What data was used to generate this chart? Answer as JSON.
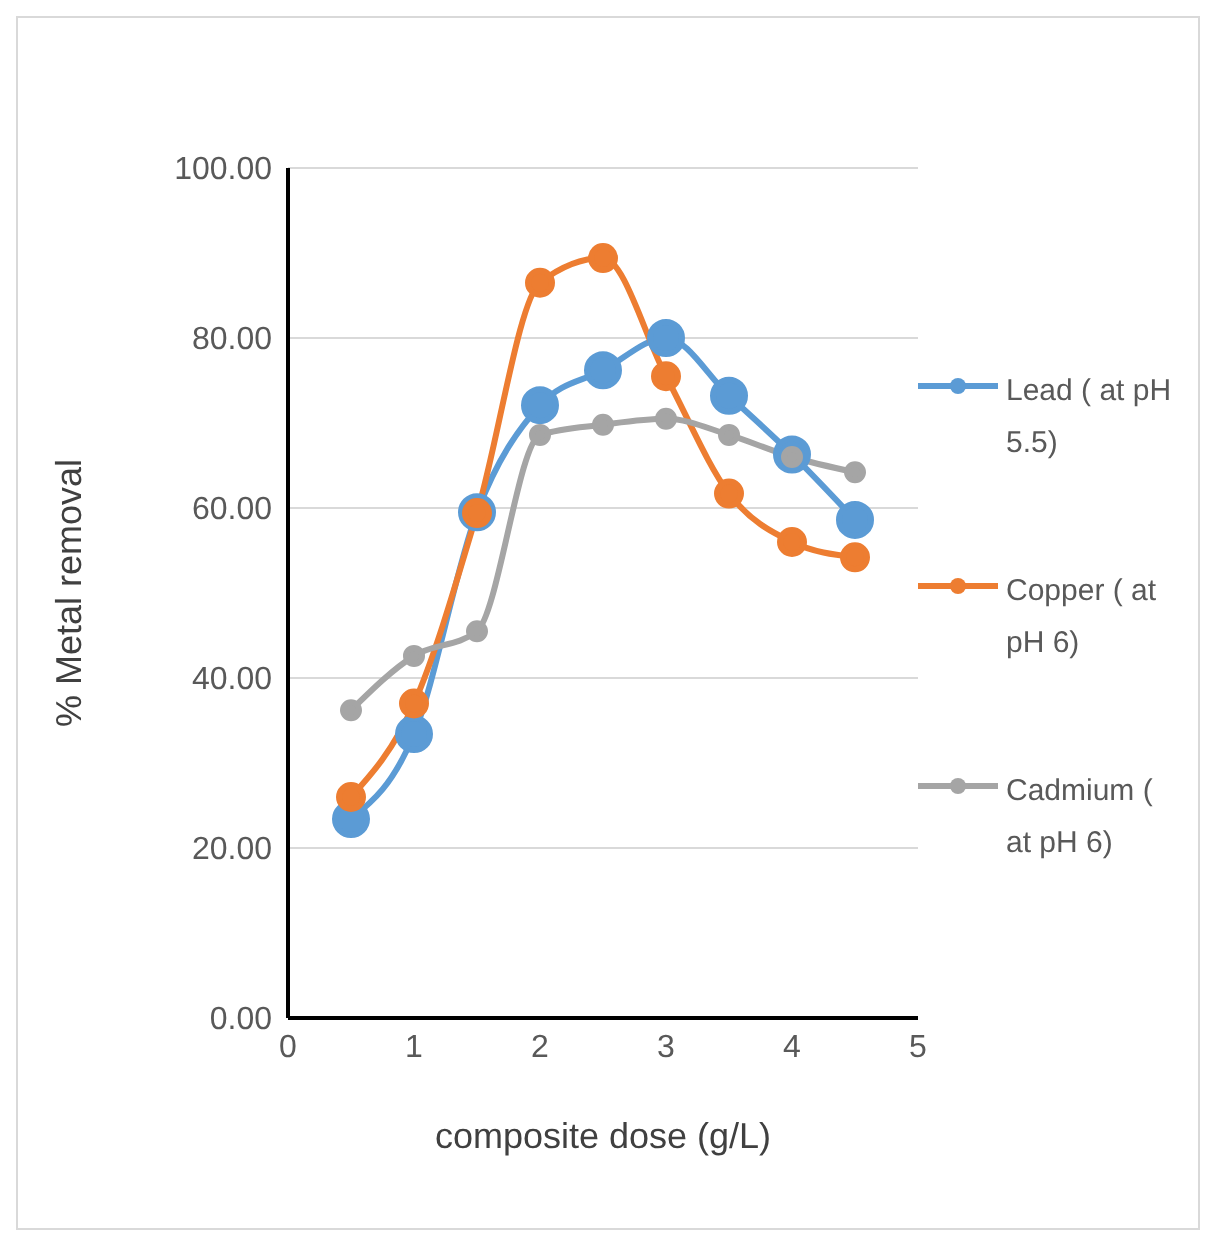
{
  "chart_data": {
    "type": "line",
    "xlabel": "composite dose (g/L)",
    "ylabel": "% Metal removal",
    "x": [
      0.5,
      1,
      1.5,
      2,
      2.5,
      3,
      3.5,
      4,
      4.5
    ],
    "series": [
      {
        "name": "Lead ( at pH 5.5)",
        "color": "#5b9bd5",
        "values": [
          23.4,
          33.4,
          59.5,
          72.1,
          76.2,
          80,
          73.2,
          66.3,
          58.6
        ]
      },
      {
        "name": "Copper ( at pH 6)",
        "color": "#ed7d31",
        "values": [
          26,
          37,
          59.4,
          86.5,
          89.4,
          75.5,
          61.7,
          56,
          54.2
        ]
      },
      {
        "name": "Cadmium ( at pH 6)",
        "color": "#a5a5a5",
        "values": [
          36.2,
          42.6,
          45.5,
          68.6,
          69.8,
          70.5,
          68.6,
          66,
          64.2
        ]
      }
    ],
    "xlim": [
      0,
      5
    ],
    "xticks": [
      0,
      1,
      2,
      3,
      4,
      5
    ],
    "ylim": [
      0,
      100
    ],
    "yticks": [
      {
        "value": 0,
        "label": "0.00"
      },
      {
        "value": 20,
        "label": "20.00"
      },
      {
        "value": 40,
        "label": "40.00"
      },
      {
        "value": 60,
        "label": "60.00"
      },
      {
        "value": 80,
        "label": "80.00"
      },
      {
        "value": 100,
        "label": "100.00"
      }
    ],
    "grid": "y",
    "legend": "right",
    "marker": "circle",
    "line_style": "solid"
  }
}
